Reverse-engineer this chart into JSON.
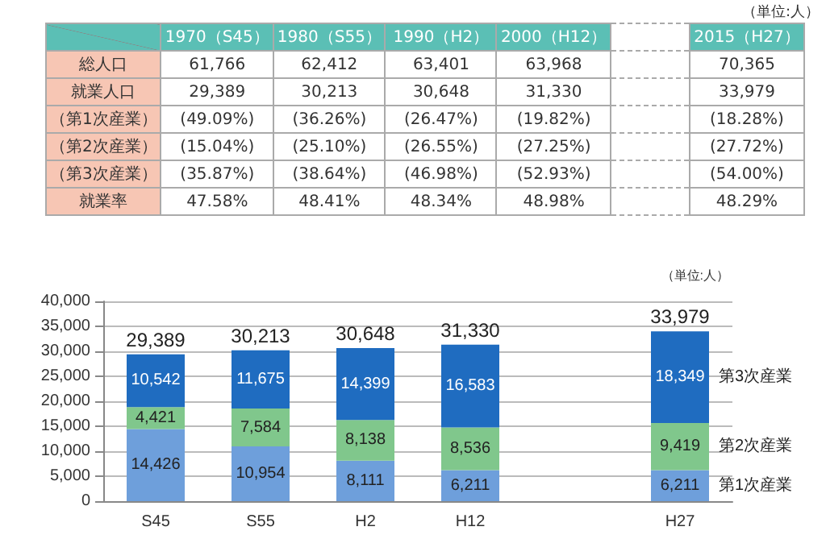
{
  "chart_data": [
    {
      "type": "other",
      "annotations": [
        "（単位:人）"
      ],
      "categories": [
        "1970（S45）",
        "1980（S55）",
        "1990（H2）",
        "2000（H12）",
        "2015（H27）"
      ],
      "y_categories": [
        "総人口",
        "就業人口",
        "（第1次産業）",
        "（第2次産業）",
        "（第3次産業）",
        "就業率"
      ],
      "cell_labels": [
        [
          "61,766",
          "62,412",
          "63,401",
          "63,968",
          "70,365"
        ],
        [
          "29,389",
          "30,213",
          "30,648",
          "31,330",
          "33,979"
        ],
        [
          "(49.09%)",
          "(36.26%)",
          "(26.47%)",
          "(19.82%)",
          "(18.28%)"
        ],
        [
          "(15.04%)",
          "(25.10%)",
          "(26.55%)",
          "(27.25%)",
          "(27.72%)"
        ],
        [
          "(35.87%)",
          "(38.64%)",
          "(46.98%)",
          "(52.93%)",
          "(54.00%)"
        ],
        [
          "47.58%",
          "48.41%",
          "48.34%",
          "48.98%",
          "48.29%"
        ]
      ]
    },
    {
      "type": "bar",
      "stacked": true,
      "annotations": [
        "（単位:人）"
      ],
      "categories": [
        "S45",
        "S55",
        "H2",
        "H12",
        null,
        "H27"
      ],
      "series": [
        {
          "name": "第1次産業",
          "color": "#6e9fdb",
          "values": [
            14426,
            10954,
            8111,
            6211,
            null,
            6211
          ],
          "value_labels": [
            "14,426",
            "10,954",
            "8,111",
            "6,211",
            null,
            "6,211"
          ]
        },
        {
          "name": "第2次産業",
          "color": "#80c78c",
          "values": [
            4421,
            7584,
            8138,
            8536,
            null,
            9419
          ],
          "value_labels": [
            "4,421",
            "7,584",
            "8,138",
            "8,536",
            null,
            "9,419"
          ]
        },
        {
          "name": "第3次産業",
          "color": "#1f6cc0",
          "values": [
            10542,
            11675,
            14399,
            16583,
            null,
            18349
          ],
          "value_labels": [
            "10,542",
            "11,675",
            "14,399",
            "16,583",
            null,
            "18,349"
          ]
        }
      ],
      "totals": [
        "29,389",
        "30,213",
        "30,648",
        "31,330",
        null,
        "33,979"
      ],
      "ylim": [
        0,
        40000
      ],
      "yticks": [
        0,
        {
          "value": 5000,
          "label": "5,000"
        },
        {
          "value": 10000,
          "label": "10,000"
        },
        {
          "value": 15000,
          "label": "15,000"
        },
        {
          "value": 20000,
          "label": "20,000"
        },
        {
          "value": 25000,
          "label": "25,000"
        },
        {
          "value": 30000,
          "label": "30,000"
        },
        {
          "value": 35000,
          "label": "35,000"
        },
        {
          "value": 40000,
          "label": "40,000"
        }
      ],
      "grid": "y"
    }
  ]
}
